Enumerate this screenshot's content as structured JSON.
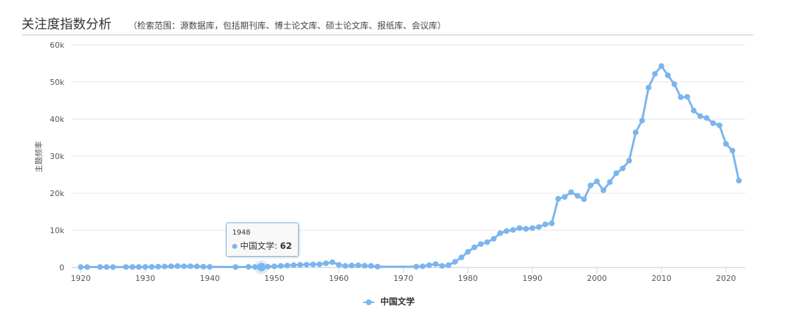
{
  "header": {
    "title": "关注度指数分析",
    "subtitle": "（检索范围：源数据库，包括期刊库、博士论文库、硕士论文库、报纸库、会议库）"
  },
  "chart_data": {
    "type": "line",
    "title": "",
    "xlabel": "",
    "ylabel": "主题频率",
    "xlim": [
      1918,
      2023
    ],
    "ylim": [
      0,
      60000
    ],
    "xticks": [
      "1920",
      "1930",
      "1940",
      "1950",
      "1960",
      "1970",
      "1980",
      "1990",
      "2000",
      "2010",
      "2020"
    ],
    "yticks": [
      "0",
      "10k",
      "20k",
      "30k",
      "40k",
      "50k",
      "60k"
    ],
    "grid": true,
    "legend_position": "bottom",
    "color": "#7cb5ec",
    "series": [
      {
        "name": "中国文学",
        "x": [
          1920,
          1921,
          1923,
          1924,
          1925,
          1927,
          1928,
          1929,
          1930,
          1931,
          1932,
          1933,
          1934,
          1935,
          1936,
          1937,
          1938,
          1939,
          1940,
          1944,
          1946,
          1947,
          1948,
          1949,
          1950,
          1951,
          1952,
          1953,
          1954,
          1955,
          1956,
          1957,
          1958,
          1959,
          1960,
          1961,
          1962,
          1963,
          1964,
          1965,
          1966,
          1972,
          1973,
          1974,
          1975,
          1976,
          1977,
          1978,
          1979,
          1980,
          1981,
          1982,
          1983,
          1984,
          1985,
          1986,
          1987,
          1988,
          1989,
          1990,
          1991,
          1992,
          1993,
          1994,
          1995,
          1996,
          1997,
          1998,
          1999,
          2000,
          2001,
          2002,
          2003,
          2004,
          2005,
          2006,
          2007,
          2008,
          2009,
          2010,
          2011,
          2012,
          2013,
          2014,
          2015,
          2016,
          2017,
          2018,
          2019,
          2020,
          2021,
          2022
        ],
        "values": [
          80,
          90,
          100,
          90,
          80,
          100,
          120,
          130,
          140,
          150,
          200,
          250,
          300,
          350,
          300,
          320,
          280,
          200,
          150,
          100,
          150,
          120,
          62,
          200,
          300,
          400,
          500,
          600,
          700,
          750,
          800,
          850,
          1100,
          1400,
          700,
          400,
          500,
          550,
          450,
          400,
          200,
          200,
          300,
          600,
          900,
          400,
          600,
          1500,
          2700,
          4200,
          5400,
          6300,
          6800,
          7700,
          9200,
          9800,
          10100,
          10600,
          10400,
          10600,
          10900,
          11600,
          11900,
          18500,
          19000,
          20300,
          19300,
          18400,
          22100,
          23200,
          20800,
          23000,
          25400,
          26700,
          28800,
          36400,
          39600,
          48500,
          52200,
          54300,
          51800,
          49400,
          45900,
          46000,
          42300,
          40800,
          40300,
          38900,
          38300,
          33300,
          31500,
          23400
        ]
      }
    ],
    "tooltip": {
      "year": "1948",
      "label": "中国文学: ",
      "value": "62"
    }
  }
}
